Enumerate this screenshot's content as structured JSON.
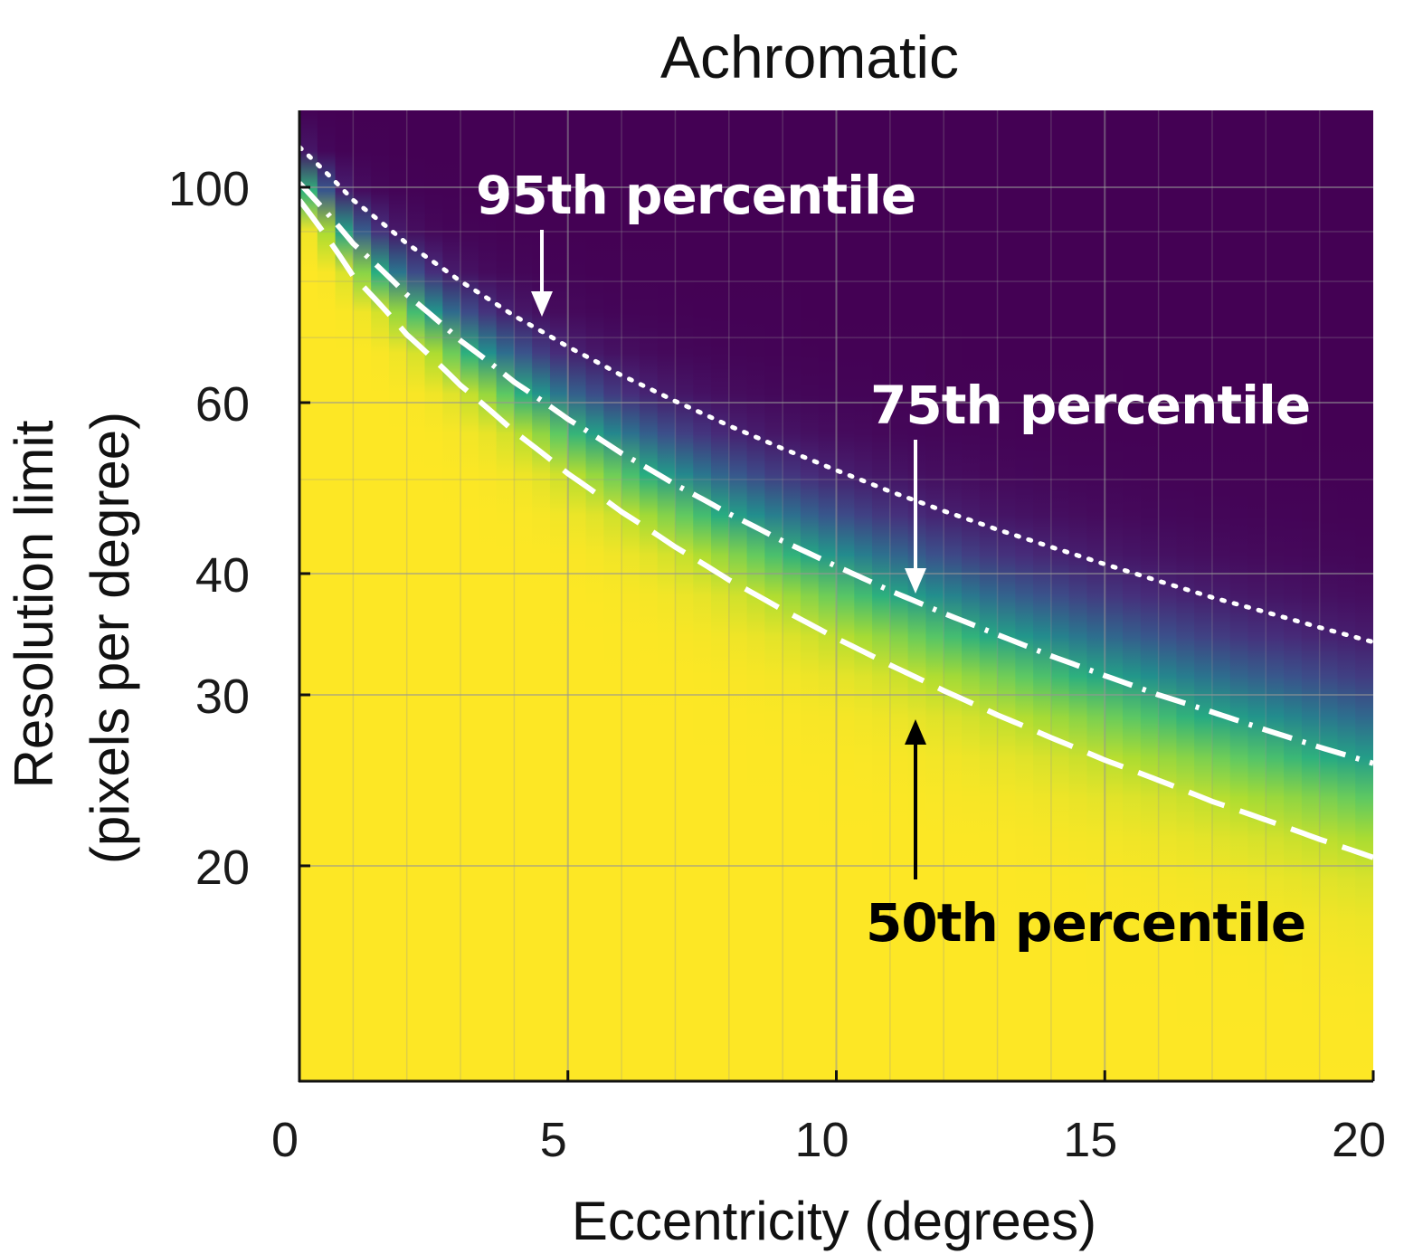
{
  "chart_data": {
    "type": "heatmap",
    "title": "Achromatic",
    "xlabel": "Eccentricity (degrees)",
    "ylabel_line1": "Resolution limit",
    "ylabel_line2": "(pixels per degree)",
    "xlim": [
      0,
      20
    ],
    "ylim": [
      12,
      120
    ],
    "yscale": "log",
    "x_ticks": [
      0,
      5,
      10,
      15,
      20
    ],
    "x_tick_labels": [
      "0",
      "5",
      "10",
      "15",
      "20"
    ],
    "y_ticks": [
      20,
      30,
      40,
      60,
      100
    ],
    "y_tick_labels": [
      "20",
      "30",
      "40",
      "60",
      "100"
    ],
    "grid": true,
    "colormap": "viridis (yellow = resolvable, purple = not resolvable)",
    "series": [
      {
        "name": "95th percentile",
        "style": "dotted",
        "x": [
          0,
          1,
          2,
          3,
          4,
          5,
          6,
          7,
          8,
          9,
          10,
          11,
          12,
          13,
          14,
          15,
          16,
          17,
          18,
          19,
          20
        ],
        "y": [
          110,
          97,
          87.5,
          80,
          73.7,
          68.5,
          64,
          60.2,
          56.8,
          53.8,
          51.1,
          48.6,
          46.4,
          44.4,
          42.6,
          40.9,
          39.3,
          37.8,
          36.5,
          35.2,
          34.0
        ]
      },
      {
        "name": "75th percentile",
        "style": "dash-dot",
        "x": [
          0,
          1,
          2,
          3,
          4,
          5,
          6,
          7,
          8,
          9,
          10,
          11,
          12,
          13,
          14,
          15,
          16,
          17,
          18,
          19,
          20
        ],
        "y": [
          101,
          87.5,
          77.5,
          69.5,
          63.0,
          57.7,
          53.2,
          49.4,
          46.1,
          43.2,
          40.7,
          38.4,
          36.4,
          34.6,
          32.9,
          31.4,
          30.0,
          28.8,
          27.6,
          26.5,
          25.5
        ]
      },
      {
        "name": "50th percentile",
        "style": "dashed",
        "x": [
          0,
          1,
          2,
          3,
          4,
          5,
          6,
          7,
          8,
          9,
          10,
          11,
          12,
          13,
          14,
          15,
          16,
          17,
          18,
          19,
          20
        ],
        "y": [
          97,
          81,
          70.5,
          62.5,
          56.0,
          50.7,
          46.3,
          42.6,
          39.4,
          36.7,
          34.3,
          32.2,
          30.3,
          28.6,
          27.1,
          25.7,
          24.5,
          23.3,
          22.3,
          21.3,
          20.4
        ]
      }
    ],
    "annotations": [
      {
        "text": "95th percentile",
        "color": "#ffffff",
        "arrow": "down",
        "x": 4.55,
        "y": 70
      },
      {
        "text": "75th percentile",
        "color": "#ffffff",
        "arrow": "down",
        "x": 11.5,
        "y": 38.5
      },
      {
        "text": "50th percentile",
        "color": "#000000",
        "arrow": "up",
        "x": 11.5,
        "y": 32.5
      }
    ],
    "colors": {
      "background_top": "#440154",
      "band_mid": "#21918c",
      "background_bottom": "#fde725",
      "annotation_light": "#ffffff",
      "annotation_dark": "#000000"
    }
  }
}
